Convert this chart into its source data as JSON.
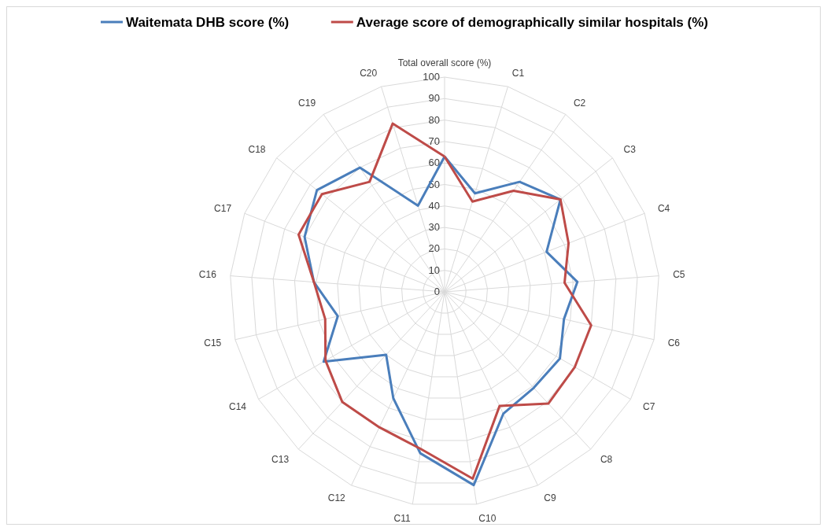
{
  "chart_data": {
    "type": "radar",
    "categories": [
      "Total overall score (%)",
      "C1",
      "C2",
      "C3",
      "C4",
      "C5",
      "C6",
      "C7",
      "C8",
      "C9",
      "C10",
      "C11",
      "C12",
      "C13",
      "C14",
      "C15",
      "C16",
      "C17",
      "C18",
      "C19",
      "C20"
    ],
    "series": [
      {
        "name": "Waitemata DHB score (%)",
        "color": "#4a7ebb",
        "values": [
          63,
          48,
          62,
          69,
          51,
          62,
          57,
          62,
          61,
          63,
          91,
          76,
          55,
          40,
          65,
          51,
          61,
          70,
          76,
          70,
          42
        ]
      },
      {
        "name": "Average score of demographically similar hospitals (%)",
        "color": "#be4b48",
        "values": [
          63,
          44,
          57,
          69,
          62,
          56,
          70,
          70,
          71,
          59,
          88,
          74,
          70,
          70,
          64,
          57,
          61,
          73,
          73,
          62,
          82
        ]
      }
    ],
    "ylim": [
      0,
      100
    ],
    "yticks": [
      0,
      10,
      20,
      30,
      40,
      50,
      60,
      70,
      80,
      90,
      100
    ],
    "grid": true,
    "legend": "top",
    "marker": "none"
  }
}
